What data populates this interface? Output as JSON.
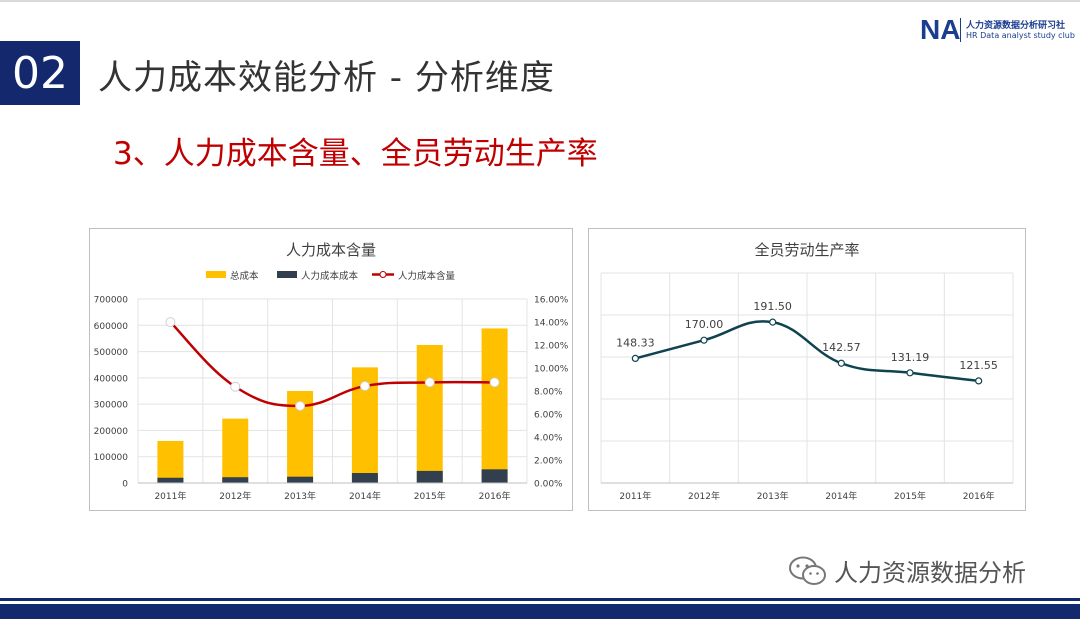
{
  "header": {
    "section_number": "02",
    "title": "人力成本效能分析  -  分析维度",
    "logo_mark": "NA",
    "logo_cn": "人力资源数据分析研习社",
    "logo_en": "HR Data analyst study club"
  },
  "subtitle": "3、人力成本含量、全员劳动生产率",
  "watermark": "人力资源数据分析",
  "colors": {
    "brand_navy": "#14286e",
    "subtitle_red": "#c00000",
    "total_cost_bar": "#ffc000",
    "hr_cost_bar": "#323f4f",
    "hr_cost_ratio_line": "#c00000",
    "productivity_line": "#0f4350"
  },
  "chart_data": [
    {
      "type": "bar",
      "title": "人力成本含量",
      "categories": [
        "2011年",
        "2012年",
        "2013年",
        "2014年",
        "2015年",
        "2016年"
      ],
      "series": [
        {
          "name": "总成本",
          "kind": "bar",
          "axis": "left",
          "values": [
            160000,
            245000,
            350000,
            440000,
            525000,
            588000
          ]
        },
        {
          "name": "人力成本成本",
          "kind": "bar",
          "axis": "left",
          "values": [
            20000,
            22000,
            24000,
            38000,
            46000,
            52000
          ]
        },
        {
          "name": "人力成本含量",
          "kind": "line",
          "axis": "right",
          "values": [
            0.1399,
            0.0837,
            0.067,
            0.0843,
            0.0875,
            0.0875
          ]
        }
      ],
      "y_left": {
        "min": 0,
        "max": 700000,
        "ticks": [
          "0",
          "100000",
          "200000",
          "300000",
          "400000",
          "500000",
          "600000",
          "700000"
        ]
      },
      "y_right": {
        "min": 0,
        "max": 0.16,
        "ticks": [
          "0.00%",
          "2.00%",
          "4.00%",
          "6.00%",
          "8.00%",
          "10.00%",
          "12.00%",
          "14.00%",
          "16.00%"
        ]
      },
      "legend": "top",
      "grid": true
    },
    {
      "type": "line",
      "title": "全员劳动生产率",
      "categories": [
        "2011年",
        "2012年",
        "2013年",
        "2014年",
        "2015年",
        "2016年"
      ],
      "series": [
        {
          "values": [
            148.33,
            170.0,
            191.5,
            142.57,
            131.19,
            121.55
          ],
          "labels": [
            "148.33",
            "170.00",
            "191.50",
            "142.57",
            "131.19",
            "121.55"
          ]
        }
      ],
      "ylim": [
        0,
        250
      ],
      "grid": true
    }
  ]
}
